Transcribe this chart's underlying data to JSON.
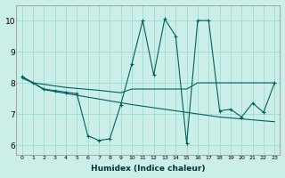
{
  "xlabel": "Humidex (Indice chaleur)",
  "x": [
    0,
    1,
    2,
    3,
    4,
    5,
    6,
    7,
    8,
    9,
    10,
    11,
    12,
    13,
    14,
    15,
    16,
    17,
    18,
    19,
    20,
    21,
    22,
    23
  ],
  "line1": [
    8.2,
    8.0,
    7.8,
    7.75,
    7.7,
    7.65,
    6.3,
    6.15,
    6.2,
    7.3,
    8.6,
    10.0,
    8.25,
    10.05,
    9.5,
    6.05,
    10.0,
    10.0,
    7.1,
    7.15,
    6.9,
    7.35,
    7.05,
    8.0
  ],
  "line2": [
    8.15,
    8.0,
    7.95,
    7.9,
    7.85,
    7.82,
    7.79,
    7.76,
    7.72,
    7.68,
    7.8,
    7.8,
    7.8,
    7.8,
    7.8,
    7.8,
    8.0,
    8.0,
    8.0,
    8.0,
    8.0,
    8.0,
    8.0,
    8.0
  ],
  "line3": [
    8.2,
    8.0,
    7.78,
    7.72,
    7.66,
    7.6,
    7.54,
    7.48,
    7.42,
    7.36,
    7.3,
    7.25,
    7.2,
    7.15,
    7.1,
    7.05,
    7.0,
    6.95,
    6.9,
    6.87,
    6.84,
    6.81,
    6.78,
    6.75
  ],
  "bg_color": "#cceee8",
  "grid_color": "#99ddcc",
  "line_color": "#006060",
  "ylim": [
    5.7,
    10.5
  ],
  "yticks": [
    6,
    7,
    8,
    9,
    10
  ],
  "xlim": [
    -0.5,
    23.5
  ]
}
